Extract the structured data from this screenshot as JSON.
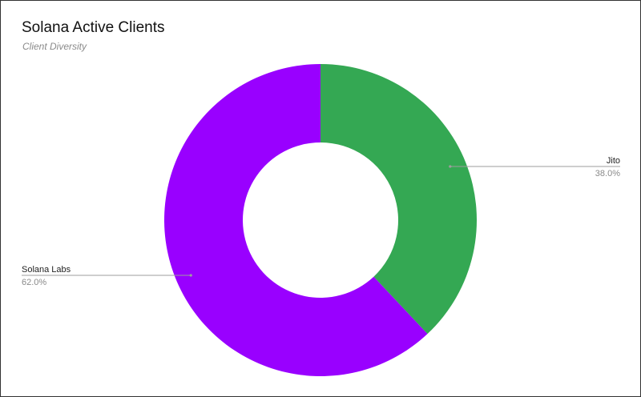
{
  "header": {
    "title": "Solana Active Clients",
    "subtitle": "Client Diversity"
  },
  "chart_data": {
    "type": "pie",
    "title": "Solana Active Clients",
    "subtitle": "Client Diversity",
    "donut": true,
    "slices": [
      {
        "label": "Jito",
        "value": 38.0,
        "percent_label": "38.0%",
        "color": "#34a853"
      },
      {
        "label": "Solana Labs",
        "value": 62.0,
        "percent_label": "62.0%",
        "color": "#9900ff"
      }
    ],
    "legend": "none"
  }
}
